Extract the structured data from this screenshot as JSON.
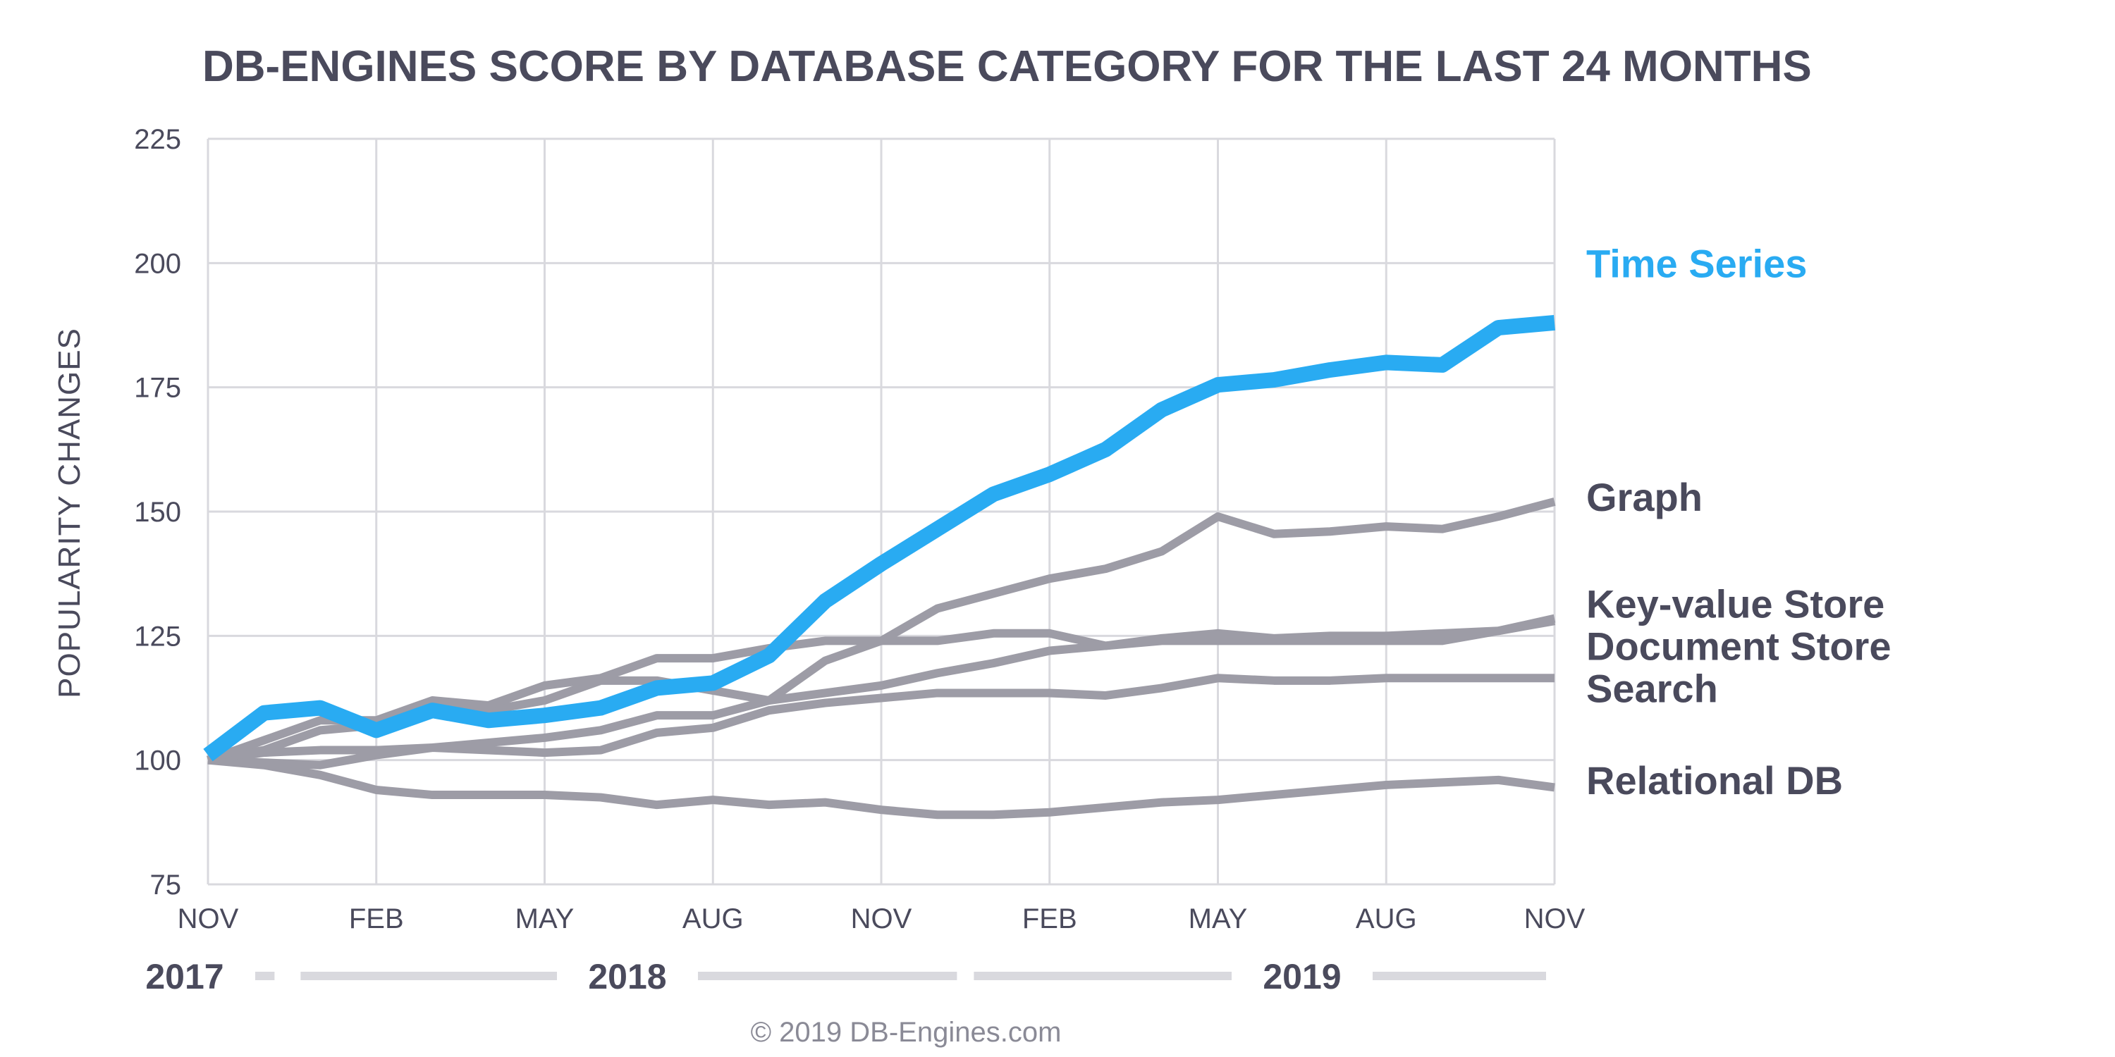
{
  "chart_data": {
    "type": "line",
    "title": "DB-ENGINES SCORE BY DATABASE CATEGORY FOR THE LAST 24 MONTHS",
    "ylabel": "POPULARITY CHANGES",
    "xlabel": "",
    "ylim": [
      75,
      225
    ],
    "yticks": [
      75,
      100,
      125,
      150,
      175,
      200,
      225
    ],
    "x_tick_labels": [
      "NOV",
      "FEB",
      "MAY",
      "AUG",
      "NOV",
      "FEB",
      "MAY",
      "AUG",
      "NOV"
    ],
    "x_tick_months": [
      0,
      3,
      6,
      9,
      12,
      15,
      18,
      21,
      24
    ],
    "years": [
      {
        "label": "2017",
        "start_month": 0,
        "end_month": 1.5
      },
      {
        "label": "2018",
        "start_month": 1.5,
        "end_month": 13.5
      },
      {
        "label": "2019",
        "start_month": 13.5,
        "end_month": 24
      }
    ],
    "x": [
      0,
      1,
      2,
      3,
      4,
      5,
      6,
      7,
      8,
      9,
      10,
      11,
      12,
      13,
      14,
      15,
      16,
      17,
      18,
      19,
      20,
      21,
      22,
      23,
      24
    ],
    "grid": true,
    "legend": "labels at right end of each line",
    "highlight_color": "#29abf2",
    "muted_color": "#9d9ca6",
    "series": [
      {
        "name": "Relational DB",
        "values": [
          100,
          99,
          97,
          94,
          93,
          93,
          93,
          92.5,
          91,
          92,
          91,
          91.5,
          90,
          89,
          89,
          89.5,
          90.5,
          91.5,
          92,
          93,
          94,
          95,
          95.5,
          96,
          94.5
        ]
      },
      {
        "name": "Search",
        "values": [
          100,
          99.5,
          99,
          101,
          102.5,
          102,
          101.5,
          102,
          105.5,
          106.5,
          110,
          111.5,
          112.5,
          113.5,
          113.5,
          113.5,
          113,
          114.5,
          116.5,
          116,
          116,
          116.5,
          116.5,
          116.5,
          116.5
        ]
      },
      {
        "name": "Document Store",
        "values": [
          100,
          101.5,
          102,
          102,
          102.5,
          103.5,
          104.5,
          106,
          109,
          109,
          112,
          113.5,
          115,
          117.5,
          119.5,
          122,
          123,
          124,
          124,
          124,
          124,
          124,
          124,
          126,
          128.5
        ]
      },
      {
        "name": "Key-value Store",
        "values": [
          100,
          102,
          106,
          107,
          110,
          110,
          112,
          116,
          116,
          114,
          112,
          120,
          124,
          124,
          125.5,
          125.5,
          123,
          124.5,
          125.5,
          124.5,
          125,
          125,
          125.5,
          126,
          128
        ]
      },
      {
        "name": "Graph",
        "values": [
          100,
          104,
          108,
          108,
          112,
          111,
          115,
          116.5,
          120.5,
          120.5,
          122.5,
          124,
          124,
          130.5,
          133.5,
          136.5,
          138.5,
          142,
          149,
          145.5,
          146,
          147,
          146.5,
          149,
          152
        ]
      },
      {
        "name": "Time Series",
        "values": [
          101,
          109.5,
          110.5,
          106,
          110,
          108,
          109,
          110.5,
          114.5,
          115.5,
          121,
          132,
          139.5,
          146.5,
          153.5,
          157.5,
          162.5,
          170.5,
          175.5,
          176.5,
          178.5,
          180,
          179.5,
          187,
          188
        ]
      }
    ]
  },
  "credit": "© 2019 DB-Engines.com"
}
